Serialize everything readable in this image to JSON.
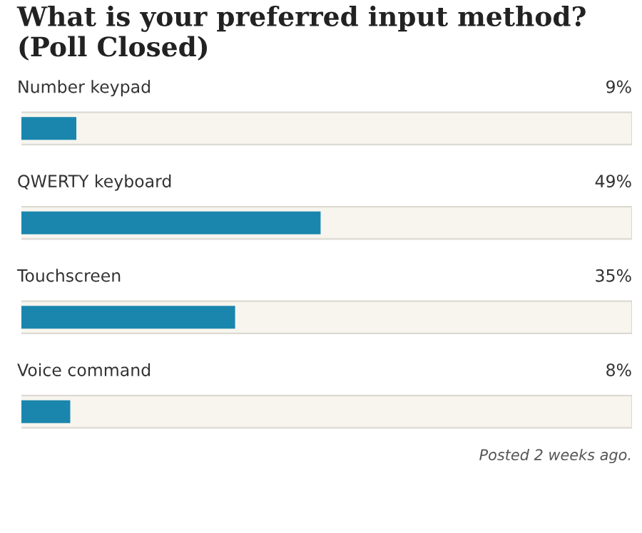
{
  "chart_data": {
    "type": "bar",
    "orientation": "horizontal",
    "title": "What is your preferred input method? (Poll Closed)",
    "categories": [
      "Number keypad",
      "QWERTY keyboard",
      "Touchscreen",
      "Voice command"
    ],
    "values": [
      9,
      49,
      35,
      8
    ],
    "value_labels": [
      "9%",
      "49%",
      "35%",
      "8%"
    ],
    "color": "#1a86ad",
    "xlim": [
      0,
      100
    ],
    "legend": false,
    "annotations": [
      "Posted 2 weeks ago."
    ]
  }
}
